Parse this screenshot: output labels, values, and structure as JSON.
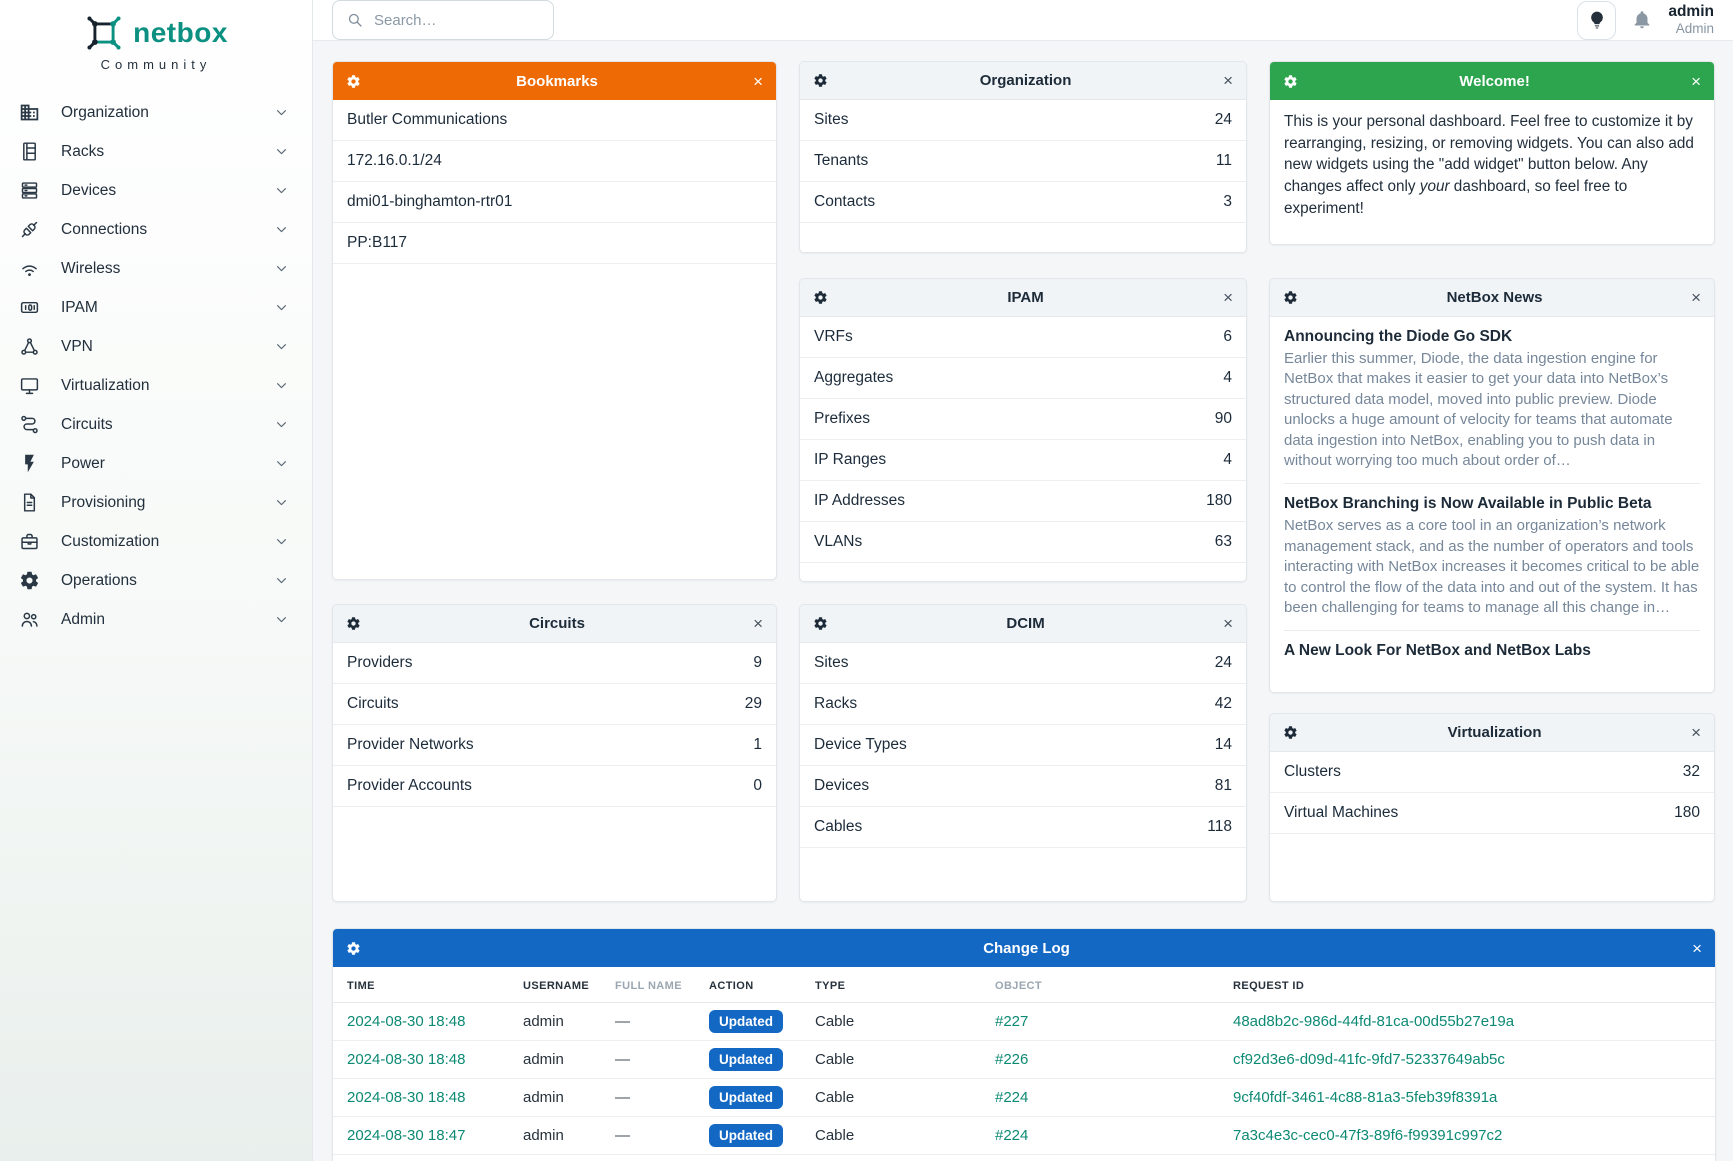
{
  "brand": {
    "name": "netbox",
    "edition": "Community"
  },
  "colors": {
    "brand_teal": "#0b9081",
    "link_teal": "#0d8a74",
    "header_orange": "#ed6a04",
    "header_green": "#2da44e",
    "header_blue": "#1368c4",
    "badge_blue": "#1368c4",
    "text_dark": "#1c2b3a",
    "text_muted": "#76879a"
  },
  "sidebar": {
    "items": [
      {
        "label": "Organization",
        "icon": "organization-icon"
      },
      {
        "label": "Racks",
        "icon": "racks-icon"
      },
      {
        "label": "Devices",
        "icon": "devices-icon"
      },
      {
        "label": "Connections",
        "icon": "connections-icon"
      },
      {
        "label": "Wireless",
        "icon": "wireless-icon"
      },
      {
        "label": "IPAM",
        "icon": "ipam-icon"
      },
      {
        "label": "VPN",
        "icon": "vpn-icon"
      },
      {
        "label": "Virtualization",
        "icon": "virtualization-icon"
      },
      {
        "label": "Circuits",
        "icon": "circuits-icon"
      },
      {
        "label": "Power",
        "icon": "power-icon"
      },
      {
        "label": "Provisioning",
        "icon": "provisioning-icon"
      },
      {
        "label": "Customization",
        "icon": "customization-icon"
      },
      {
        "label": "Operations",
        "icon": "operations-icon"
      },
      {
        "label": "Admin",
        "icon": "admin-icon"
      }
    ]
  },
  "topbar": {
    "search_placeholder": "Search…",
    "user_name": "admin",
    "user_role": "Admin"
  },
  "widgets": {
    "bookmarks": {
      "title": "Bookmarks",
      "items": [
        {
          "label": "Butler Communications"
        },
        {
          "label": "172.16.0.1/24"
        },
        {
          "label": "dmi01-binghamton-rtr01"
        },
        {
          "label": "PP:B117"
        }
      ]
    },
    "organization": {
      "title": "Organization",
      "stats": [
        {
          "label": "Sites",
          "value": "24"
        },
        {
          "label": "Tenants",
          "value": "11"
        },
        {
          "label": "Contacts",
          "value": "3"
        }
      ]
    },
    "welcome": {
      "title": "Welcome!",
      "text_before": "This is your personal dashboard. Feel free to customize it by rearranging, resizing, or removing widgets. You can also add new widgets using the \"add widget\" button below. Any changes affect only ",
      "text_italic": "your",
      "text_after": " dashboard, so feel free to experiment!"
    },
    "ipam": {
      "title": "IPAM",
      "stats": [
        {
          "label": "VRFs",
          "value": "6"
        },
        {
          "label": "Aggregates",
          "value": "4"
        },
        {
          "label": "Prefixes",
          "value": "90"
        },
        {
          "label": "IP Ranges",
          "value": "4"
        },
        {
          "label": "IP Addresses",
          "value": "180"
        },
        {
          "label": "VLANs",
          "value": "63"
        }
      ]
    },
    "news": {
      "title": "NetBox News",
      "articles": [
        {
          "title": "Announcing the Diode Go SDK",
          "excerpt": "Earlier this summer, Diode, the data ingestion engine for NetBox that makes it easier to get your data into NetBox’s structured data model, moved into public preview. Diode unlocks a huge amount of velocity for teams that automate data ingestion into NetBox, enabling you to push data in without worrying too much about order of…"
        },
        {
          "title": "NetBox Branching is Now Available in Public Beta",
          "excerpt": "NetBox serves as a core tool in an organization’s network management stack, and as the number of operators and tools interacting with NetBox increases it becomes critical to be able to control the flow of the data into and out of the system. It has been challenging for teams to manage all this change in…"
        },
        {
          "title": "A New Look For NetBox and NetBox Labs",
          "excerpt": ""
        }
      ]
    },
    "circuits": {
      "title": "Circuits",
      "stats": [
        {
          "label": "Providers",
          "value": "9"
        },
        {
          "label": "Circuits",
          "value": "29"
        },
        {
          "label": "Provider Networks",
          "value": "1"
        },
        {
          "label": "Provider Accounts",
          "value": "0"
        }
      ]
    },
    "dcim": {
      "title": "DCIM",
      "stats": [
        {
          "label": "Sites",
          "value": "24"
        },
        {
          "label": "Racks",
          "value": "42"
        },
        {
          "label": "Device Types",
          "value": "14"
        },
        {
          "label": "Devices",
          "value": "81"
        },
        {
          "label": "Cables",
          "value": "118"
        }
      ]
    },
    "virtualization": {
      "title": "Virtualization",
      "stats": [
        {
          "label": "Clusters",
          "value": "32"
        },
        {
          "label": "Virtual Machines",
          "value": "180"
        }
      ]
    },
    "changelog": {
      "title": "Change Log",
      "columns": [
        {
          "label": "TIME",
          "muted": false
        },
        {
          "label": "USERNAME",
          "muted": false
        },
        {
          "label": "FULL NAME",
          "muted": true
        },
        {
          "label": "ACTION",
          "muted": false
        },
        {
          "label": "TYPE",
          "muted": false
        },
        {
          "label": "OBJECT",
          "muted": true
        },
        {
          "label": "REQUEST ID",
          "muted": false
        }
      ],
      "rows": [
        {
          "time": "2024-08-30 18:48",
          "username": "admin",
          "full_name": "—",
          "action": "Updated",
          "type": "Cable",
          "object": "#227",
          "request_id": "48ad8b2c-986d-44fd-81ca-00d55b27e19a"
        },
        {
          "time": "2024-08-30 18:48",
          "username": "admin",
          "full_name": "—",
          "action": "Updated",
          "type": "Cable",
          "object": "#226",
          "request_id": "cf92d3e6-d09d-41fc-9fd7-52337649ab5c"
        },
        {
          "time": "2024-08-30 18:48",
          "username": "admin",
          "full_name": "—",
          "action": "Updated",
          "type": "Cable",
          "object": "#224",
          "request_id": "9cf40fdf-3461-4c88-81a3-5feb39f8391a"
        },
        {
          "time": "2024-08-30 18:47",
          "username": "admin",
          "full_name": "—",
          "action": "Updated",
          "type": "Cable",
          "object": "#224",
          "request_id": "7a3c4e3c-cec0-47f3-89f6-f99391c997c2"
        }
      ]
    }
  }
}
